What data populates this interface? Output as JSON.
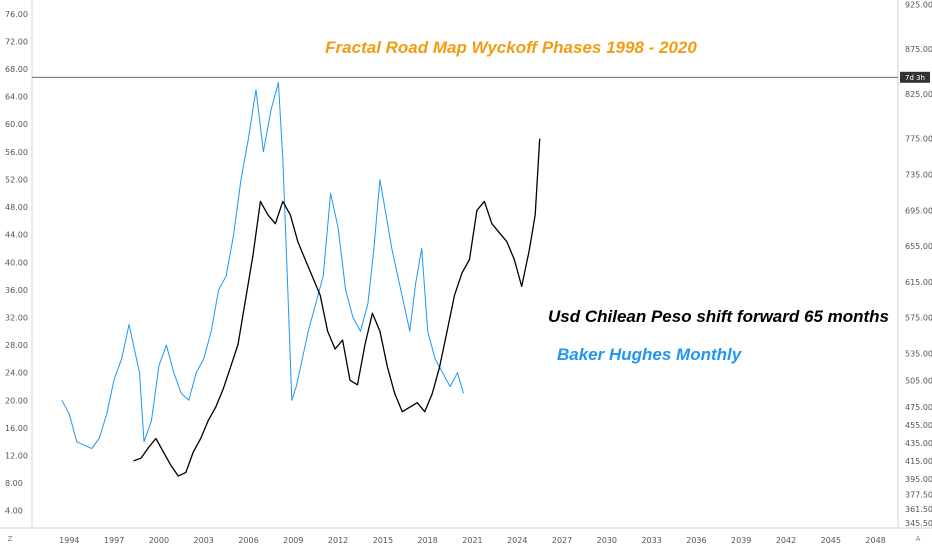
{
  "chart_data": {
    "type": "line",
    "title": "Fractal Road Map Wyckoff Phases 1998 -  2020",
    "annotations": [
      {
        "text": "Usd Chilean Peso shift forward 65 months",
        "color": "#000000"
      },
      {
        "text": "Baker Hughes Monthly",
        "color": "#2196f3"
      }
    ],
    "x_ticks": [
      "1994",
      "1997",
      "2000",
      "2003",
      "2006",
      "2009",
      "2012",
      "2015",
      "2018",
      "2021",
      "2024",
      "2027",
      "2030",
      "2033",
      "2036",
      "2039",
      "2042",
      "2045",
      "2048"
    ],
    "xlim": [
      1991.5,
      2049.5
    ],
    "left_axis": {
      "ticks": [
        "76.00",
        "72.00",
        "68.00",
        "64.00",
        "60.00",
        "56.00",
        "52.00",
        "48.00",
        "44.00",
        "40.00",
        "36.00",
        "32.00",
        "28.00",
        "24.00",
        "20.00",
        "16.00",
        "12.00",
        "8.00",
        "4.00"
      ],
      "ylim": [
        1.5,
        78
      ]
    },
    "right_axis": {
      "ticks": [
        "925.00",
        "875.00",
        "825.00",
        "775.00",
        "735.00",
        "695.00",
        "655.00",
        "615.00",
        "575.00",
        "535.00",
        "505.00",
        "475.00",
        "455.00",
        "435.00",
        "415.00",
        "395.00",
        "377.50",
        "361.50",
        "345.50"
      ],
      "ylim": [
        340,
        930
      ]
    },
    "horizontal_line": {
      "value": 66.8
    },
    "price_badge": {
      "text": "7d 3h"
    },
    "corner_labels": {
      "bottom_left": "Z",
      "bottom_right": "A"
    },
    "series": [
      {
        "name": "Baker Hughes Monthly",
        "axis": "left",
        "color": "#2196f3",
        "x": [
          1993.5,
          1994.0,
          1994.5,
          1995.0,
          1995.5,
          1996.0,
          1996.5,
          1997.0,
          1997.5,
          1998.0,
          1998.3,
          1998.7,
          1999.0,
          1999.5,
          2000.0,
          2000.5,
          2001.0,
          2001.5,
          2002.0,
          2002.5,
          2003.0,
          2003.5,
          2004.0,
          2004.5,
          2005.0,
          2005.5,
          2006.0,
          2006.5,
          2007.0,
          2007.5,
          2008.0,
          2008.3,
          2008.6,
          2008.9,
          2009.2,
          2009.5,
          2010.0,
          2010.5,
          2011.0,
          2011.5,
          2012.0,
          2012.5,
          2013.0,
          2013.5,
          2014.0,
          2014.4,
          2014.8,
          2015.2,
          2015.6,
          2016.0,
          2016.4,
          2016.8,
          2017.2,
          2017.6,
          2018.0,
          2018.5,
          2019.0,
          2019.5,
          2020.0,
          2020.4
        ],
        "values": [
          20,
          18,
          14,
          13.5,
          13,
          14.5,
          18,
          23,
          26,
          31,
          28,
          24,
          14,
          17,
          25,
          28,
          24,
          21,
          20,
          24,
          26,
          30,
          36,
          38,
          44,
          52,
          58,
          65,
          56,
          62,
          66,
          55,
          38,
          20,
          22,
          25,
          30,
          34,
          38,
          50,
          45,
          36,
          32,
          30,
          34,
          42,
          52,
          47,
          42,
          38,
          34,
          30,
          37,
          42,
          30,
          26,
          24,
          22,
          24,
          21
        ]
      },
      {
        "name": "",
        "axis": "right",
        "color": "#000000",
        "x": [
          1998.3,
          1998.8,
          1999.3,
          1999.8,
          2000.3,
          2000.8,
          2001.3,
          2001.8,
          2002.3,
          2002.8,
          2003.3,
          2003.8,
          2004.3,
          2004.8,
          2005.3,
          2005.8,
          2006.3,
          2006.8,
          2007.3,
          2007.8,
          2008.3,
          2008.8,
          2009.3,
          2009.8,
          2010.3,
          2010.8,
          2011.3,
          2011.8,
          2012.3,
          2012.8,
          2013.3,
          2013.8,
          2014.3,
          2014.8,
          2015.3,
          2015.8,
          2016.3,
          2016.8,
          2017.3,
          2017.8,
          2018.3,
          2018.8,
          2019.3,
          2019.8,
          2020.3,
          2020.8,
          2021.3,
          2021.8,
          2022.3,
          2022.8,
          2023.3,
          2023.8,
          2024.3,
          2024.8,
          2025.2,
          2025.5
        ],
        "values": [
          415,
          418,
          430,
          440,
          425,
          410,
          398,
          402,
          425,
          440,
          460,
          475,
          495,
          520,
          545,
          595,
          645,
          705,
          690,
          680,
          705,
          690,
          660,
          640,
          620,
          600,
          560,
          540,
          550,
          505,
          500,
          545,
          580,
          560,
          520,
          490,
          470,
          475,
          480,
          470,
          490,
          520,
          560,
          600,
          625,
          640,
          695,
          705,
          680,
          670,
          660,
          640,
          610,
          650,
          690,
          775
        ]
      }
    ]
  }
}
